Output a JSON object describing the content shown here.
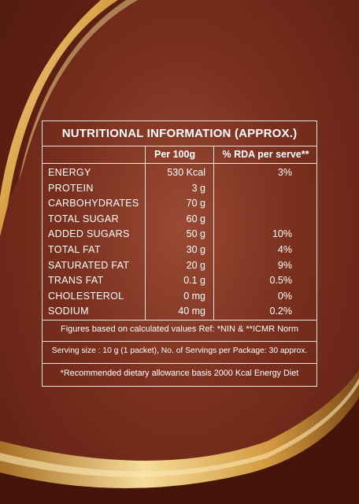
{
  "table": {
    "title": "NUTRITIONAL INFORMATION (APPROX.)",
    "col_per100": "Per 100g",
    "col_rda": "% RDA per serve**",
    "rows": [
      {
        "name": "ENERGY",
        "qty": "530 Kcal",
        "rda": "3%"
      },
      {
        "name": "PROTEIN",
        "qty": "3 g",
        "rda": ""
      },
      {
        "name": "CARBOHYDRATES",
        "qty": "70 g",
        "rda": ""
      },
      {
        "name": "TOTAL SUGAR",
        "qty": "60 g",
        "rda": ""
      },
      {
        "name": "ADDED SUGARS",
        "qty": "50 g",
        "rda": "10%"
      },
      {
        "name": "TOTAL FAT",
        "qty": "30 g",
        "rda": "4%"
      },
      {
        "name": "SATURATED FAT",
        "qty": "20 g",
        "rda": "9%"
      },
      {
        "name": "TRANS FAT",
        "qty": "0.1 g",
        "rda": "0.5%"
      },
      {
        "name": "CHOLESTEROL",
        "qty": "0 mg",
        "rda": "0%"
      },
      {
        "name": "SODIUM",
        "qty": "40 mg",
        "rda": "0.2%"
      }
    ],
    "note_ref": "Figures based on calculated values Ref: *NIN & **ICMR Norm",
    "note_serving": "Serving size : 10 g (1 packet), No. of Servings per Package: 30 approx.",
    "note_rda": "*Recommended dietary allowance basis 2000 Kcal Energy Diet"
  },
  "colors": {
    "background": "#7a2f1e",
    "gold": "#e6b85c",
    "line": "#f3e6df"
  }
}
